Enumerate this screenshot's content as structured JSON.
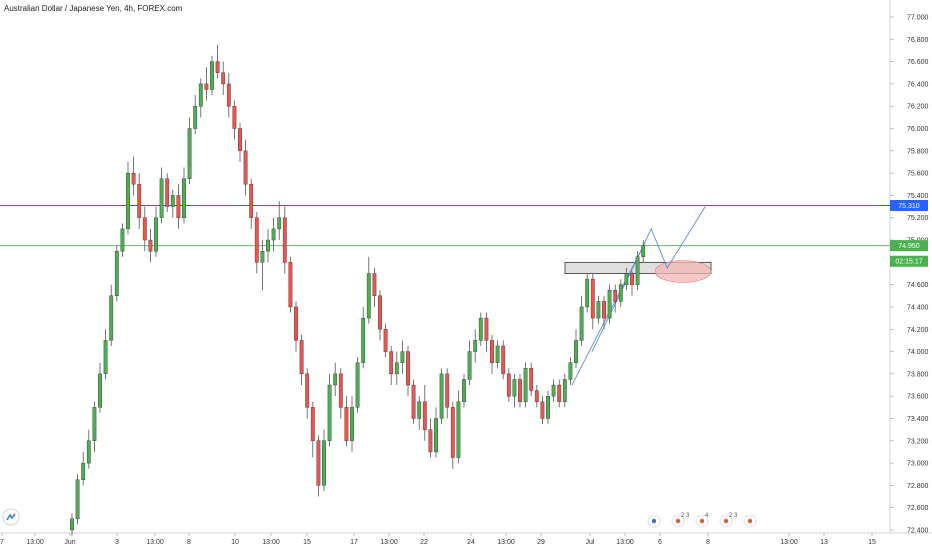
{
  "header": {
    "title": "Australian Dollar / Japanese Yen, 4h, FOREX.com"
  },
  "price_axis": {
    "ticks": [
      "77.000",
      "76.800",
      "76.600",
      "76.400",
      "76.200",
      "76.000",
      "75.800",
      "75.600",
      "75.400",
      "75.200",
      "75.000",
      "74.800",
      "74.600",
      "74.400",
      "74.200",
      "74.000",
      "73.800",
      "73.600",
      "73.400",
      "73.200",
      "73.000",
      "72.800",
      "72.600",
      "72.400"
    ]
  },
  "time_axis": {
    "labels": [
      "7",
      "13:00",
      "Jun",
      "3",
      "13:00",
      "8",
      "10",
      "13:00",
      "15",
      "17",
      "13:00",
      "22",
      "24",
      "13:00",
      "29",
      "Jul",
      "13:00",
      "6",
      "8",
      "13:00",
      "13",
      "15"
    ]
  },
  "price_tags": {
    "blue_line": "75.310",
    "current_price": "74.950",
    "countdown": "02:15:17"
  },
  "colors": {
    "up": "#26a69a",
    "up_body": "#4caf50",
    "down": "#ef5350",
    "blue_line": "#2962ff",
    "green_line": "#66bb6a",
    "zone_fill": "#e0e0e0",
    "ellipse_fill": "#f4b6b6"
  },
  "event_markers": [
    {
      "icon": "bank-icon",
      "count": ""
    },
    {
      "icon": "flag-icon",
      "count": "2 3"
    },
    {
      "icon": "flag-icon",
      "count": "4"
    },
    {
      "icon": "flag-icon",
      "count": "2 3"
    },
    {
      "icon": "flag-icon",
      "count": ""
    }
  ],
  "chart_data": {
    "type": "candlestick",
    "symbol": "AUD/JPY",
    "timeframe": "4h",
    "ylim": [
      72.4,
      77.0
    ],
    "grid": false,
    "horizontal_lines": [
      {
        "price": 75.31,
        "color": "blue"
      },
      {
        "price": 74.95,
        "color": "green"
      }
    ],
    "zone": {
      "low": 74.7,
      "high": 74.8
    },
    "projection": [
      74.95,
      75.1,
      74.75,
      75.3
    ],
    "ohlc": [
      [
        72.4,
        72.55,
        72.35,
        72.5
      ],
      [
        72.5,
        72.9,
        72.45,
        72.85
      ],
      [
        72.85,
        73.1,
        72.8,
        73.0
      ],
      [
        73.0,
        73.3,
        72.95,
        73.2
      ],
      [
        73.2,
        73.55,
        73.1,
        73.5
      ],
      [
        73.5,
        73.9,
        73.45,
        73.8
      ],
      [
        73.8,
        74.2,
        73.75,
        74.1
      ],
      [
        74.1,
        74.6,
        74.05,
        74.5
      ],
      [
        74.5,
        74.95,
        74.45,
        74.9
      ],
      [
        74.9,
        75.15,
        74.85,
        75.1
      ],
      [
        75.1,
        75.7,
        75.05,
        75.6
      ],
      [
        75.6,
        75.75,
        75.4,
        75.5
      ],
      [
        75.5,
        75.6,
        75.1,
        75.2
      ],
      [
        75.2,
        75.3,
        74.9,
        75.0
      ],
      [
        75.0,
        75.1,
        74.8,
        74.9
      ],
      [
        74.9,
        75.3,
        74.85,
        75.2
      ],
      [
        75.2,
        75.65,
        75.15,
        75.55
      ],
      [
        75.55,
        75.6,
        75.25,
        75.3
      ],
      [
        75.3,
        75.45,
        75.2,
        75.4
      ],
      [
        75.4,
        75.5,
        75.1,
        75.2
      ],
      [
        75.2,
        75.65,
        75.15,
        75.55
      ],
      [
        75.55,
        76.1,
        75.5,
        76.0
      ],
      [
        76.0,
        76.3,
        75.95,
        76.2
      ],
      [
        76.2,
        76.45,
        76.1,
        76.4
      ],
      [
        76.4,
        76.55,
        76.25,
        76.35
      ],
      [
        76.35,
        76.65,
        76.3,
        76.6
      ],
      [
        76.6,
        76.75,
        76.45,
        76.5
      ],
      [
        76.5,
        76.6,
        76.3,
        76.4
      ],
      [
        76.4,
        76.5,
        76.1,
        76.2
      ],
      [
        76.2,
        76.25,
        75.9,
        76.0
      ],
      [
        76.0,
        76.05,
        75.7,
        75.8
      ],
      [
        75.8,
        75.9,
        75.4,
        75.5
      ],
      [
        75.5,
        75.55,
        75.1,
        75.2
      ],
      [
        75.2,
        75.25,
        74.7,
        74.8
      ],
      [
        74.8,
        75.0,
        74.55,
        74.9
      ],
      [
        74.9,
        75.1,
        74.8,
        75.0
      ],
      [
        75.0,
        75.2,
        74.9,
        75.1
      ],
      [
        75.1,
        75.35,
        75.0,
        75.2
      ],
      [
        75.2,
        75.3,
        74.7,
        74.8
      ],
      [
        74.8,
        74.85,
        74.35,
        74.4
      ],
      [
        74.4,
        74.45,
        74.0,
        74.1
      ],
      [
        74.1,
        74.15,
        73.7,
        73.8
      ],
      [
        73.8,
        73.85,
        73.4,
        73.5
      ],
      [
        73.5,
        73.55,
        73.05,
        73.2
      ],
      [
        73.2,
        73.25,
        72.7,
        72.8
      ],
      [
        72.8,
        73.3,
        72.75,
        73.2
      ],
      [
        73.2,
        73.8,
        73.15,
        73.7
      ],
      [
        73.7,
        73.9,
        73.6,
        73.8
      ],
      [
        73.8,
        73.85,
        73.4,
        73.5
      ],
      [
        73.5,
        73.6,
        73.15,
        73.2
      ],
      [
        73.2,
        73.6,
        73.1,
        73.5
      ],
      [
        73.5,
        73.95,
        73.45,
        73.9
      ],
      [
        73.9,
        74.4,
        73.85,
        74.3
      ],
      [
        74.3,
        74.85,
        74.25,
        74.7
      ],
      [
        74.7,
        74.75,
        74.4,
        74.5
      ],
      [
        74.5,
        74.55,
        74.1,
        74.2
      ],
      [
        74.2,
        74.25,
        73.95,
        74.0
      ],
      [
        74.0,
        74.05,
        73.7,
        73.8
      ],
      [
        73.8,
        74.0,
        73.7,
        73.9
      ],
      [
        73.9,
        74.1,
        73.8,
        74.0
      ],
      [
        74.0,
        74.05,
        73.6,
        73.7
      ],
      [
        73.7,
        73.75,
        73.35,
        73.4
      ],
      [
        73.4,
        73.6,
        73.3,
        73.55
      ],
      [
        73.55,
        73.7,
        73.2,
        73.3
      ],
      [
        73.3,
        73.4,
        73.05,
        73.1
      ],
      [
        73.1,
        73.5,
        73.05,
        73.4
      ],
      [
        73.4,
        73.85,
        73.35,
        73.8
      ],
      [
        73.8,
        73.85,
        73.4,
        73.5
      ],
      [
        73.5,
        73.55,
        72.95,
        73.05
      ],
      [
        73.05,
        73.65,
        73.0,
        73.55
      ],
      [
        73.55,
        73.8,
        73.5,
        73.75
      ],
      [
        73.75,
        74.1,
        73.7,
        74.0
      ],
      [
        74.0,
        74.2,
        73.9,
        74.1
      ],
      [
        74.1,
        74.35,
        74.05,
        74.3
      ],
      [
        74.3,
        74.35,
        74.0,
        74.1
      ],
      [
        74.1,
        74.15,
        73.8,
        73.9
      ],
      [
        73.9,
        74.1,
        73.85,
        74.05
      ],
      [
        74.05,
        74.1,
        73.75,
        73.8
      ],
      [
        73.8,
        73.85,
        73.55,
        73.6
      ],
      [
        73.6,
        73.8,
        73.5,
        73.75
      ],
      [
        73.75,
        73.8,
        73.5,
        73.55
      ],
      [
        73.55,
        73.9,
        73.5,
        73.85
      ],
      [
        73.85,
        73.9,
        73.6,
        73.65
      ],
      [
        73.65,
        73.7,
        73.5,
        73.55
      ],
      [
        73.55,
        73.6,
        73.35,
        73.4
      ],
      [
        73.4,
        73.65,
        73.35,
        73.6
      ],
      [
        73.6,
        73.75,
        73.55,
        73.7
      ],
      [
        73.7,
        73.75,
        73.5,
        73.55
      ],
      [
        73.55,
        73.8,
        73.5,
        73.75
      ],
      [
        73.75,
        73.95,
        73.7,
        73.9
      ],
      [
        73.9,
        74.2,
        73.85,
        74.1
      ],
      [
        74.1,
        74.5,
        74.05,
        74.4
      ],
      [
        74.4,
        74.7,
        74.35,
        74.65
      ],
      [
        74.65,
        74.7,
        74.2,
        74.3
      ],
      [
        74.3,
        74.5,
        74.25,
        74.45
      ],
      [
        74.45,
        74.5,
        74.2,
        74.3
      ],
      [
        74.3,
        74.6,
        74.25,
        74.55
      ],
      [
        74.55,
        74.6,
        74.35,
        74.45
      ],
      [
        74.45,
        74.65,
        74.4,
        74.6
      ],
      [
        74.6,
        74.75,
        74.55,
        74.7
      ],
      [
        74.7,
        74.72,
        74.5,
        74.6
      ],
      [
        74.6,
        74.9,
        74.55,
        74.85
      ],
      [
        74.85,
        75.0,
        74.8,
        74.95
      ]
    ]
  }
}
